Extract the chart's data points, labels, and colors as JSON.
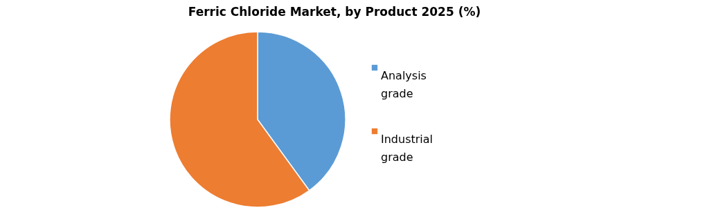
{
  "chart_data": {
    "type": "pie",
    "title": "Ferric Chloride Market, by Product 2025 (%)",
    "categories": [
      "Analysis grade",
      "Industrial grade"
    ],
    "values": [
      40,
      60
    ],
    "colors": [
      "#5b9bd5",
      "#ed7d31"
    ],
    "legend": "right"
  }
}
